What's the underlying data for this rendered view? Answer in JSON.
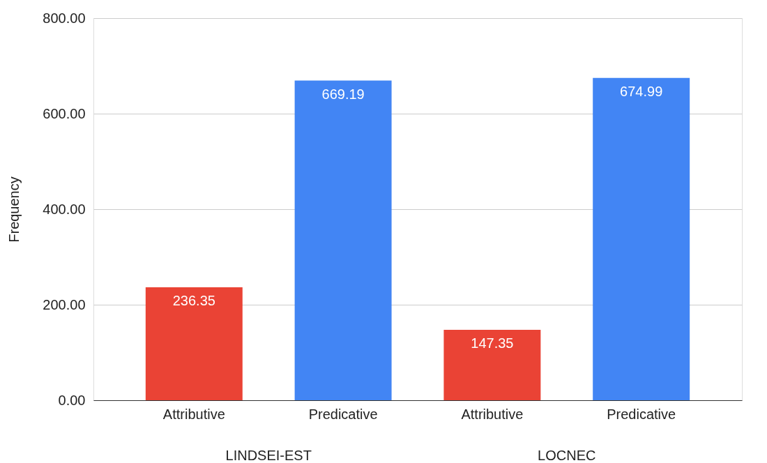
{
  "chart_data": {
    "type": "bar",
    "ylabel": "Frequency",
    "categories": [
      "Attributive",
      "Predicative",
      "Attributive",
      "Predicative"
    ],
    "values": [
      236.35,
      669.19,
      147.35,
      674.99
    ],
    "colors": [
      "#ea4335",
      "#4285f4",
      "#ea4335",
      "#4285f4"
    ],
    "ylim": [
      0,
      800
    ],
    "yticks": [
      {
        "value": 0,
        "label": "0.00"
      },
      {
        "value": 200,
        "label": "200.00"
      },
      {
        "value": 400,
        "label": "400.00"
      },
      {
        "value": 600,
        "label": "600.00"
      },
      {
        "value": 800,
        "label": "800.00"
      }
    ],
    "grid": "y",
    "data_labels": true,
    "annotations": [
      "LINDSEI-EST",
      "LOCNEC"
    ]
  }
}
